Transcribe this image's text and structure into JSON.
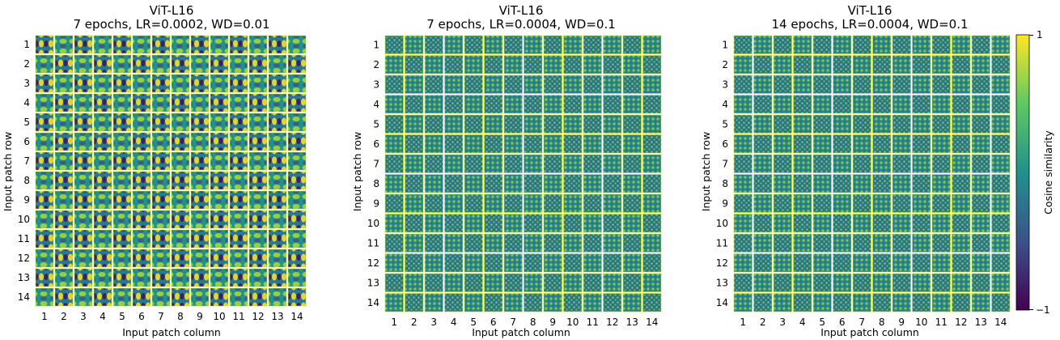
{
  "chart_data": {
    "type": "heatmap",
    "panels": [
      {
        "title_line1": "ViT-L16",
        "title_line2": "7 epochs, LR=0.0002, WD=0.01",
        "xlabel": "Input patch column",
        "ylabel": "Input patch row",
        "rows": 14,
        "cols": 14,
        "pattern": "smooth",
        "x_ticks": [
          "1",
          "2",
          "3",
          "4",
          "5",
          "6",
          "7",
          "8",
          "9",
          "10",
          "11",
          "12",
          "13",
          "14"
        ],
        "y_ticks": [
          "1",
          "2",
          "3",
          "4",
          "5",
          "6",
          "7",
          "8",
          "9",
          "10",
          "11",
          "12",
          "13",
          "14"
        ]
      },
      {
        "title_line1": "ViT-L16",
        "title_line2": "7 epochs, LR=0.0004, WD=0.1",
        "xlabel": "Input patch column",
        "ylabel": "Input patch row",
        "rows": 14,
        "cols": 14,
        "pattern": "high-frequency",
        "x_ticks": [
          "1",
          "2",
          "3",
          "4",
          "5",
          "6",
          "7",
          "8",
          "9",
          "10",
          "11",
          "12",
          "13",
          "14"
        ],
        "y_ticks": [
          "1",
          "2",
          "3",
          "4",
          "5",
          "6",
          "7",
          "8",
          "9",
          "10",
          "11",
          "12",
          "13",
          "14"
        ]
      },
      {
        "title_line1": "ViT-L16",
        "title_line2": "14 epochs, LR=0.0004, WD=0.1",
        "xlabel": "Input patch column",
        "ylabel": "Input patch row",
        "rows": 14,
        "cols": 14,
        "pattern": "high-frequency",
        "x_ticks": [
          "1",
          "2",
          "3",
          "4",
          "5",
          "6",
          "7",
          "8",
          "9",
          "10",
          "11",
          "12",
          "13",
          "14"
        ],
        "y_ticks": [
          "1",
          "2",
          "3",
          "4",
          "5",
          "6",
          "7",
          "8",
          "9",
          "10",
          "11",
          "12",
          "13",
          "14"
        ]
      }
    ],
    "colorbar": {
      "label": "Cosine similarity",
      "min": -1,
      "max": 1,
      "min_label": "−1",
      "max_label": "1",
      "colormap": "viridis",
      "colors": [
        "#440154",
        "#3b528b",
        "#21918c",
        "#5ec962",
        "#fde725"
      ]
    }
  }
}
